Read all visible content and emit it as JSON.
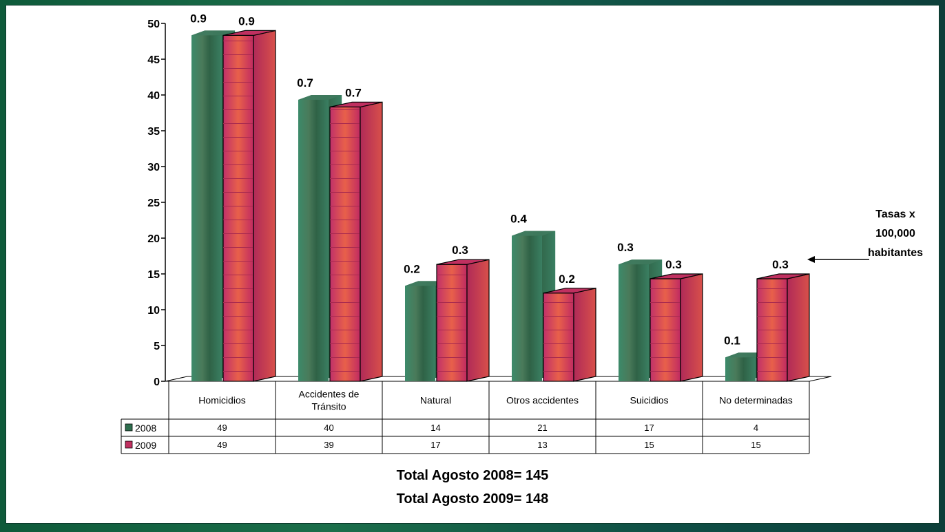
{
  "chart_data": {
    "type": "bar",
    "categories": [
      "Homicidios",
      "Accidentes de Tránsito",
      "Natural",
      "Otros accidentes",
      "Suicidios",
      "No determinadas"
    ],
    "category_lines": [
      [
        "Homicidios"
      ],
      [
        "Accidentes de",
        "Tránsito"
      ],
      [
        "Natural"
      ],
      [
        "Otros accidentes"
      ],
      [
        "Suicidios"
      ],
      [
        "No determinadas"
      ]
    ],
    "series": [
      {
        "name": "2008",
        "values": [
          49,
          40,
          14,
          21,
          17,
          4
        ],
        "rates": [
          "0.9",
          "0.7",
          "0.2",
          "0.4",
          "0.3",
          "0.1"
        ],
        "color": "#2e6e4e"
      },
      {
        "name": "2009",
        "values": [
          49,
          39,
          17,
          13,
          15,
          15
        ],
        "rates": [
          "0.9",
          "0.7",
          "0.3",
          "0.2",
          "0.3",
          "0.3"
        ],
        "color": "#c03060"
      }
    ],
    "ylim": [
      0,
      50
    ],
    "yticks": [
      0,
      5,
      10,
      15,
      20,
      25,
      30,
      35,
      40,
      45,
      50
    ],
    "grid": false,
    "legend": "data-table",
    "annotation": [
      "Tasas x",
      "100,000",
      "habitantes"
    ]
  },
  "totals": {
    "line1": "Total Agosto  2008= 145",
    "line2": "Total Agosto  2009= 148"
  },
  "colors": {
    "series_2008": "#2e6e4e",
    "series_2009_front": "#c03060",
    "series_2009_side": "#b02a50",
    "series_2009_top": "#d04070",
    "border": "#0c3a2c"
  }
}
